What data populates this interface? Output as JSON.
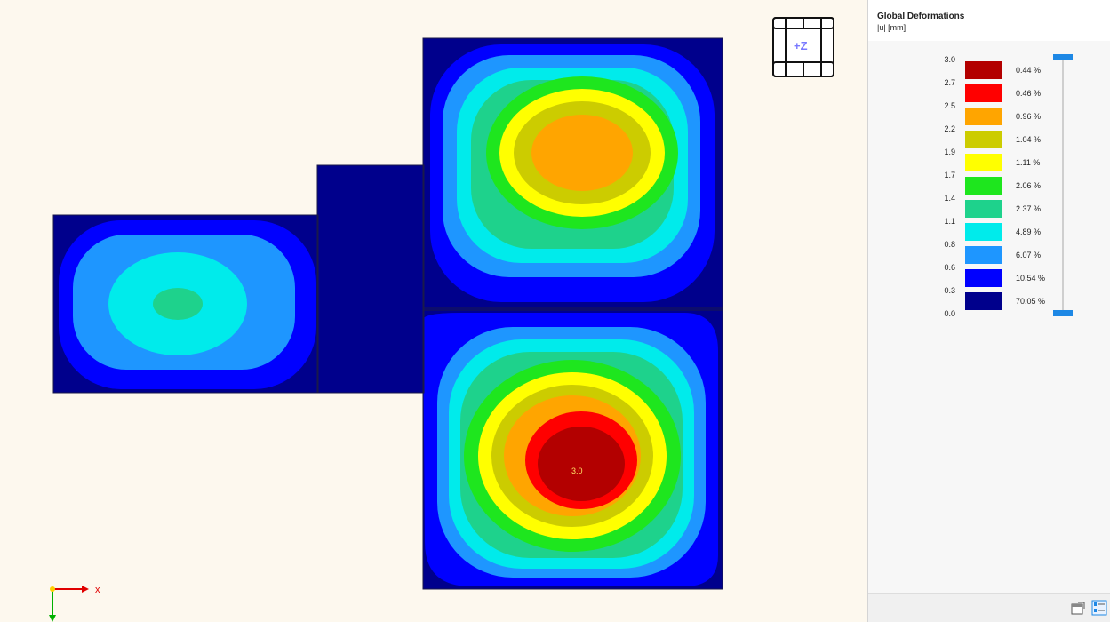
{
  "legend": {
    "title": "Global Deformations",
    "unit": "|u| [mm]",
    "ticks": [
      "3.0",
      "2.7",
      "2.5",
      "2.2",
      "1.9",
      "1.7",
      "1.4",
      "1.1",
      "0.8",
      "0.6",
      "0.3",
      "0.0"
    ],
    "bands": [
      {
        "color": "#b30000",
        "pct": "0.44 %"
      },
      {
        "color": "#ff0000",
        "pct": "0.46 %"
      },
      {
        "color": "#ffa500",
        "pct": "0.96 %"
      },
      {
        "color": "#cccc00",
        "pct": "1.04 %"
      },
      {
        "color": "#ffff00",
        "pct": "1.11 %"
      },
      {
        "color": "#1ee61e",
        "pct": "2.06 %"
      },
      {
        "color": "#1ed28c",
        "pct": "2.37 %"
      },
      {
        "color": "#00ebeb",
        "pct": "4.89 %"
      },
      {
        "color": "#1e96ff",
        "pct": "6.07 %"
      },
      {
        "color": "#0000ff",
        "pct": "10.54 %"
      },
      {
        "color": "#00008c",
        "pct": "70.05 %"
      }
    ]
  },
  "view": {
    "cube_label": "+Z",
    "max_label": "3.0",
    "axis_x_label": "x"
  },
  "colors": {
    "plate_base": "#00008c"
  }
}
